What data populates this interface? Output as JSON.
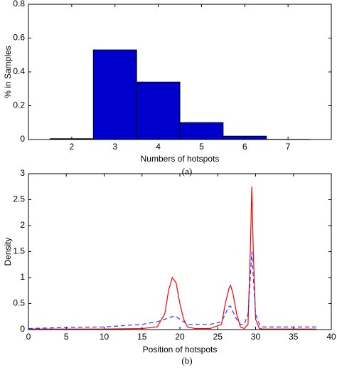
{
  "chart_data": [
    {
      "type": "bar",
      "x_label": "Numbers of hotspots",
      "y_label": "% in Samples",
      "caption": "(a)",
      "x": [
        2,
        3,
        4,
        5,
        6,
        7
      ],
      "values": [
        0.005,
        0.53,
        0.34,
        0.1,
        0.02,
        0.001
      ],
      "color": "#0000cc",
      "xlim": [
        1,
        8
      ],
      "xticks": [
        2,
        3,
        4,
        5,
        6,
        7
      ],
      "ylim": [
        0,
        0.8
      ],
      "yticks": [
        0,
        0.2,
        0.4,
        0.6,
        0.8
      ]
    },
    {
      "type": "line",
      "x_label": "Position of hotspots",
      "y_label": "Density",
      "caption": "(b)",
      "x": [
        0,
        5,
        10,
        15,
        17,
        18,
        18.5,
        19,
        19.5,
        20,
        20.5,
        21,
        22,
        24,
        25.5,
        26,
        26.5,
        26.7,
        27,
        27.5,
        28,
        28.5,
        29,
        29.3,
        29.5,
        29.7,
        30,
        30.5,
        31,
        35,
        38
      ],
      "series": [
        {
          "color": "#ff0000",
          "style": "solid",
          "values": [
            0.01,
            0.01,
            0.01,
            0.02,
            0.05,
            0.3,
            0.75,
            1.0,
            0.9,
            0.5,
            0.2,
            0.05,
            0.02,
            0.02,
            0.1,
            0.5,
            0.8,
            0.85,
            0.7,
            0.3,
            0.05,
            0.02,
            0.1,
            1.5,
            2.75,
            1.5,
            0.2,
            0.02,
            0.01,
            0.01,
            0.01
          ]
        },
        {
          "color": "#3333ff",
          "style": "dashed",
          "values": [
            0.02,
            0.04,
            0.05,
            0.1,
            0.15,
            0.2,
            0.22,
            0.25,
            0.25,
            0.2,
            0.15,
            0.1,
            0.1,
            0.1,
            0.15,
            0.3,
            0.45,
            0.45,
            0.35,
            0.2,
            0.1,
            0.1,
            0.3,
            1.0,
            1.5,
            1.0,
            0.3,
            0.1,
            0.05,
            0.05,
            0.05
          ]
        }
      ],
      "xlim": [
        0,
        40
      ],
      "xticks": [
        0,
        5,
        10,
        15,
        20,
        25,
        30,
        35,
        40
      ],
      "ylim": [
        0,
        3
      ],
      "yticks": [
        0,
        0.5,
        1,
        1.5,
        2,
        2.5,
        3
      ]
    }
  ]
}
